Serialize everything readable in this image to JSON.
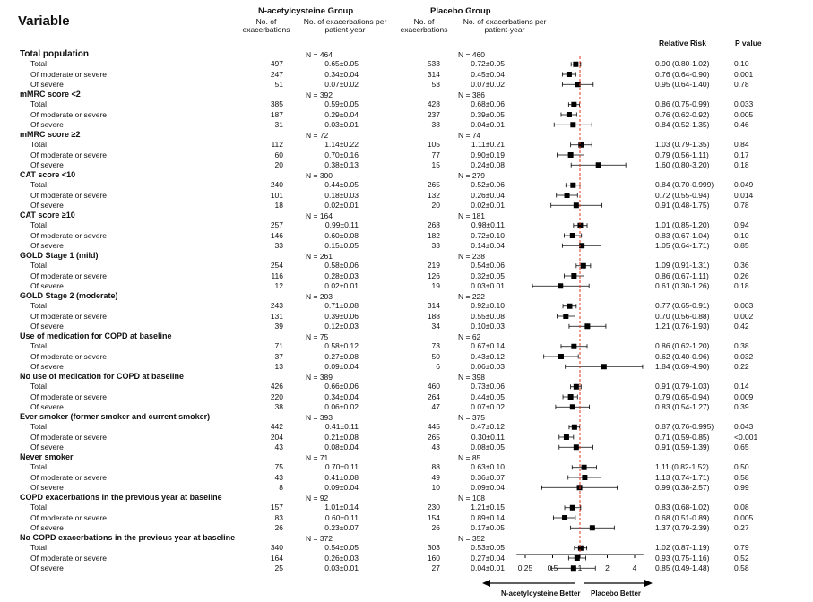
{
  "header": {
    "variable": "Variable",
    "nac_group": "N-acetylcysteine Group",
    "placebo_group": "Placebo Group",
    "col_n": "No. of exacerbations",
    "col_rate": "No. of exacerbations per patient-year",
    "col_rr": "Relative Risk",
    "col_p": "P value"
  },
  "axis": {
    "ticks": [
      "0.25",
      "0.5",
      "1",
      "2",
      "4"
    ],
    "tick_values": [
      0.25,
      0.5,
      1,
      2,
      4
    ],
    "xlim": [
      0.2,
      5
    ],
    "scale": "log",
    "reference_line": 1,
    "reference_color": "#e0351f",
    "left_label": "N-acetylcysteine Better",
    "right_label": "Placebo Better"
  },
  "chart_data": {
    "type": "forest",
    "groups": [
      {
        "title": "Total population",
        "nac_n": "N = 464",
        "placebo_n": "N = 460",
        "rows": [
          {
            "label": "Total",
            "nac_count": "497",
            "nac_rate": "0.65±0.05",
            "plc_count": "533",
            "plc_rate": "0.72±0.05",
            "rr_text": "0.90 (0.80-1.02)",
            "p": "0.10",
            "rr": 0.9,
            "lo": 0.8,
            "hi": 1.02
          },
          {
            "label": "Of moderate or severe",
            "nac_count": "247",
            "nac_rate": "0.34±0.04",
            "plc_count": "314",
            "plc_rate": "0.45±0.04",
            "rr_text": "0.76 (0.64-0.90)",
            "p": "0.001",
            "rr": 0.76,
            "lo": 0.64,
            "hi": 0.9
          },
          {
            "label": "Of severe",
            "nac_count": "51",
            "nac_rate": "0.07±0.02",
            "plc_count": "53",
            "plc_rate": "0.07±0.02",
            "rr_text": "0.95 (0.64-1.40)",
            "p": "0.78",
            "rr": 0.95,
            "lo": 0.64,
            "hi": 1.4
          }
        ]
      },
      {
        "title": "mMRC score <2",
        "nac_n": "N = 392",
        "placebo_n": "N = 386",
        "rows": [
          {
            "label": "Total",
            "nac_count": "385",
            "nac_rate": "0.59±0.05",
            "plc_count": "428",
            "plc_rate": "0.68±0.06",
            "rr_text": "0.86 (0.75-0.99)",
            "p": "0.033",
            "rr": 0.86,
            "lo": 0.75,
            "hi": 0.99
          },
          {
            "label": "Of moderate or severe",
            "nac_count": "187",
            "nac_rate": "0.29±0.04",
            "plc_count": "237",
            "plc_rate": "0.39±0.05",
            "rr_text": "0.76 (0.62-0.92)",
            "p": "0.005",
            "rr": 0.76,
            "lo": 0.62,
            "hi": 0.92
          },
          {
            "label": "Of severe",
            "nac_count": "31",
            "nac_rate": "0.03±0.01",
            "plc_count": "38",
            "plc_rate": "0.04±0.01",
            "rr_text": "0.84 (0.52-1.35)",
            "p": "0.46",
            "rr": 0.84,
            "lo": 0.52,
            "hi": 1.35
          }
        ]
      },
      {
        "title": "mMRC score ≥2",
        "nac_n": "N = 72",
        "placebo_n": "N = 74",
        "rows": [
          {
            "label": "Total",
            "nac_count": "112",
            "nac_rate": "1.14±0.22",
            "plc_count": "105",
            "plc_rate": "1.11±0.21",
            "rr_text": "1.03 (0.79-1.35)",
            "p": "0.84",
            "rr": 1.03,
            "lo": 0.79,
            "hi": 1.35
          },
          {
            "label": "Of moderate or severe",
            "nac_count": "60",
            "nac_rate": "0.70±0.16",
            "plc_count": "77",
            "plc_rate": "0.90±0.19",
            "rr_text": "0.79 (0.56-1.11)",
            "p": "0.17",
            "rr": 0.79,
            "lo": 0.56,
            "hi": 1.11
          },
          {
            "label": "Of severe",
            "nac_count": "20",
            "nac_rate": "0.38±0.13",
            "plc_count": "15",
            "plc_rate": "0.24±0.08",
            "rr_text": "1.60 (0.80-3.20)",
            "p": "0.18",
            "rr": 1.6,
            "lo": 0.8,
            "hi": 3.2
          }
        ]
      },
      {
        "title": "CAT score <10",
        "nac_n": "N = 300",
        "placebo_n": "N = 279",
        "rows": [
          {
            "label": "Total",
            "nac_count": "240",
            "nac_rate": "0.44±0.05",
            "plc_count": "265",
            "plc_rate": "0.52±0.06",
            "rr_text": "0.84 (0.70-0.999)",
            "p": "0.049",
            "rr": 0.84,
            "lo": 0.7,
            "hi": 0.999
          },
          {
            "label": "Of moderate or severe",
            "nac_count": "101",
            "nac_rate": "0.18±0.03",
            "plc_count": "132",
            "plc_rate": "0.26±0.04",
            "rr_text": "0.72 (0.55-0.94)",
            "p": "0.014",
            "rr": 0.72,
            "lo": 0.55,
            "hi": 0.94
          },
          {
            "label": "Of severe",
            "nac_count": "18",
            "nac_rate": "0.02±0.01",
            "plc_count": "20",
            "plc_rate": "0.02±0.01",
            "rr_text": "0.91 (0.48-1.75)",
            "p": "0.78",
            "rr": 0.91,
            "lo": 0.48,
            "hi": 1.75
          }
        ]
      },
      {
        "title": "CAT score ≥10",
        "nac_n": "N = 164",
        "placebo_n": "N = 181",
        "rows": [
          {
            "label": "Total",
            "nac_count": "257",
            "nac_rate": "0.99±0.11",
            "plc_count": "268",
            "plc_rate": "0.98±0.11",
            "rr_text": "1.01 (0.85-1.20)",
            "p": "0.94",
            "rr": 1.01,
            "lo": 0.85,
            "hi": 1.2
          },
          {
            "label": "Of moderate or severe",
            "nac_count": "146",
            "nac_rate": "0.60±0.08",
            "plc_count": "182",
            "plc_rate": "0.72±0.10",
            "rr_text": "0.83 (0.67-1.04)",
            "p": "0.10",
            "rr": 0.83,
            "lo": 0.67,
            "hi": 1.04
          },
          {
            "label": "Of severe",
            "nac_count": "33",
            "nac_rate": "0.15±0.05",
            "plc_count": "33",
            "plc_rate": "0.14±0.04",
            "rr_text": "1.05 (0.64-1.71)",
            "p": "0.85",
            "rr": 1.05,
            "lo": 0.64,
            "hi": 1.71
          }
        ]
      },
      {
        "title": "GOLD Stage 1 (mild)",
        "nac_n": "N = 261",
        "placebo_n": "N = 238",
        "rows": [
          {
            "label": "Total",
            "nac_count": "254",
            "nac_rate": "0.58±0.06",
            "plc_count": "219",
            "plc_rate": "0.54±0.06",
            "rr_text": "1.09 (0.91-1.31)",
            "p": "0.36",
            "rr": 1.09,
            "lo": 0.91,
            "hi": 1.31
          },
          {
            "label": "Of moderate or severe",
            "nac_count": "116",
            "nac_rate": "0.28±0.03",
            "plc_count": "126",
            "plc_rate": "0.32±0.05",
            "rr_text": "0.86 (0.67-1.11)",
            "p": "0.26",
            "rr": 0.86,
            "lo": 0.67,
            "hi": 1.11
          },
          {
            "label": "Of severe",
            "nac_count": "12",
            "nac_rate": "0.02±0.01",
            "plc_count": "19",
            "plc_rate": "0.03±0.01",
            "rr_text": "0.61 (0.30-1.26)",
            "p": "0.18",
            "rr": 0.61,
            "lo": 0.3,
            "hi": 1.26
          }
        ]
      },
      {
        "title": "GOLD Stage 2 (moderate)",
        "nac_n": "N = 203",
        "placebo_n": "N = 222",
        "rows": [
          {
            "label": "Total",
            "nac_count": "243",
            "nac_rate": "0.71±0.08",
            "plc_count": "314",
            "plc_rate": "0.92±0.10",
            "rr_text": "0.77 (0.65-0.91)",
            "p": "0.003",
            "rr": 0.77,
            "lo": 0.65,
            "hi": 0.91
          },
          {
            "label": "Of moderate or severe",
            "nac_count": "131",
            "nac_rate": "0.39±0.06",
            "plc_count": "188",
            "plc_rate": "0.55±0.08",
            "rr_text": "0.70 (0.56-0.88)",
            "p": "0.002",
            "rr": 0.7,
            "lo": 0.56,
            "hi": 0.88
          },
          {
            "label": "Of severe",
            "nac_count": "39",
            "nac_rate": "0.12±0.03",
            "plc_count": "34",
            "plc_rate": "0.10±0.03",
            "rr_text": "1.21 (0.76-1.93)",
            "p": "0.42",
            "rr": 1.21,
            "lo": 0.76,
            "hi": 1.93
          }
        ]
      },
      {
        "title": "Use of medication for COPD at baseline",
        "nac_n": "N = 75",
        "placebo_n": "N = 62",
        "rows": [
          {
            "label": "Total",
            "nac_count": "71",
            "nac_rate": "0.58±0.12",
            "plc_count": "73",
            "plc_rate": "0.67±0.14",
            "rr_text": "0.86 (0.62-1.20)",
            "p": "0.38",
            "rr": 0.86,
            "lo": 0.62,
            "hi": 1.2
          },
          {
            "label": "Of moderate or severe",
            "nac_count": "37",
            "nac_rate": "0.27±0.08",
            "plc_count": "50",
            "plc_rate": "0.43±0.12",
            "rr_text": "0.62 (0.40-0.96)",
            "p": "0.032",
            "rr": 0.62,
            "lo": 0.4,
            "hi": 0.96
          },
          {
            "label": "Of severe",
            "nac_count": "13",
            "nac_rate": "0.09±0.04",
            "plc_count": "6",
            "plc_rate": "0.06±0.03",
            "rr_text": "1.84 (0.69-4.90)",
            "p": "0.22",
            "rr": 1.84,
            "lo": 0.69,
            "hi": 4.9
          }
        ]
      },
      {
        "title": "No use of medication for COPD at baseline",
        "nac_n": "N = 389",
        "placebo_n": "N = 398",
        "rows": [
          {
            "label": "Total",
            "nac_count": "426",
            "nac_rate": "0.66±0.06",
            "plc_count": "460",
            "plc_rate": "0.73±0.06",
            "rr_text": "0.91 (0.79-1.03)",
            "p": "0.14",
            "rr": 0.91,
            "lo": 0.79,
            "hi": 1.03
          },
          {
            "label": "Of moderate or severe",
            "nac_count": "220",
            "nac_rate": "0.34±0.04",
            "plc_count": "264",
            "plc_rate": "0.44±0.05",
            "rr_text": "0.79 (0.65-0.94)",
            "p": "0.009",
            "rr": 0.79,
            "lo": 0.65,
            "hi": 0.94
          },
          {
            "label": "Of severe",
            "nac_count": "38",
            "nac_rate": "0.06±0.02",
            "plc_count": "47",
            "plc_rate": "0.07±0.02",
            "rr_text": "0.83 (0.54-1.27)",
            "p": "0.39",
            "rr": 0.83,
            "lo": 0.54,
            "hi": 1.27
          }
        ]
      },
      {
        "title": "Ever smoker (former smoker and current smoker)",
        "nac_n": "N = 393",
        "placebo_n": "N = 375",
        "rows": [
          {
            "label": "Total",
            "nac_count": "442",
            "nac_rate": "0.41±0.11",
            "plc_count": "445",
            "plc_rate": "0.47±0.12",
            "rr_text": "0.87 (0.76-0.995)",
            "p": "0.043",
            "rr": 0.87,
            "lo": 0.76,
            "hi": 0.995
          },
          {
            "label": "Of moderate or severe",
            "nac_count": "204",
            "nac_rate": "0.21±0.08",
            "plc_count": "265",
            "plc_rate": "0.30±0.11",
            "rr_text": "0.71 (0.59-0.85)",
            "p": "<0.001",
            "rr": 0.71,
            "lo": 0.59,
            "hi": 0.85
          },
          {
            "label": "Of severe",
            "nac_count": "43",
            "nac_rate": "0.08±0.04",
            "plc_count": "43",
            "plc_rate": "0.08±0.05",
            "rr_text": "0.91 (0.59-1.39)",
            "p": "0.65",
            "rr": 0.91,
            "lo": 0.59,
            "hi": 1.39
          }
        ]
      },
      {
        "title": "Never smoker",
        "nac_n": "N = 71",
        "placebo_n": "N = 85",
        "rows": [
          {
            "label": "Total",
            "nac_count": "75",
            "nac_rate": "0.70±0.11",
            "plc_count": "88",
            "plc_rate": "0.63±0.10",
            "rr_text": "1.11 (0.82-1.52)",
            "p": "0.50",
            "rr": 1.11,
            "lo": 0.82,
            "hi": 1.52
          },
          {
            "label": "Of moderate or severe",
            "nac_count": "43",
            "nac_rate": "0.41±0.08",
            "plc_count": "49",
            "plc_rate": "0.36±0.07",
            "rr_text": "1.13 (0.74-1.71)",
            "p": "0.58",
            "rr": 1.13,
            "lo": 0.74,
            "hi": 1.71
          },
          {
            "label": "Of severe",
            "nac_count": "8",
            "nac_rate": "0.09±0.04",
            "plc_count": "10",
            "plc_rate": "0.09±0.04",
            "rr_text": "0.99 (0.38-2.57)",
            "p": "0.99",
            "rr": 0.99,
            "lo": 0.38,
            "hi": 2.57
          }
        ]
      },
      {
        "title": "COPD exacerbations in the previous year at baseline",
        "nac_n": "N = 92",
        "placebo_n": "N = 108",
        "rows": [
          {
            "label": "Total",
            "nac_count": "157",
            "nac_rate": "1.01±0.14",
            "plc_count": "230",
            "plc_rate": "1.21±0.15",
            "rr_text": "0.83 (0.68-1.02)",
            "p": "0.08",
            "rr": 0.83,
            "lo": 0.68,
            "hi": 1.02
          },
          {
            "label": "Of moderate or severe",
            "nac_count": "83",
            "nac_rate": "0.60±0.11",
            "plc_count": "154",
            "plc_rate": "0.89±0.14",
            "rr_text": "0.68 (0.51-0.89)",
            "p": "0.005",
            "rr": 0.68,
            "lo": 0.51,
            "hi": 0.89
          },
          {
            "label": "Of severe",
            "nac_count": "26",
            "nac_rate": "0.23±0.07",
            "plc_count": "26",
            "plc_rate": "0.17±0.05",
            "rr_text": "1.37 (0.79-2.39)",
            "p": "0.27",
            "rr": 1.37,
            "lo": 0.79,
            "hi": 2.39
          }
        ]
      },
      {
        "title": "No COPD exacerbations in the previous year at baseline",
        "nac_n": "N = 372",
        "placebo_n": "N = 352",
        "rows": [
          {
            "label": "Total",
            "nac_count": "340",
            "nac_rate": "0.54±0.05",
            "plc_count": "303",
            "plc_rate": "0.53±0.05",
            "rr_text": "1.02 (0.87-1.19)",
            "p": "0.79",
            "rr": 1.02,
            "lo": 0.87,
            "hi": 1.19
          },
          {
            "label": "Of moderate or severe",
            "nac_count": "164",
            "nac_rate": "0.26±0.03",
            "plc_count": "160",
            "plc_rate": "0.27±0.04",
            "rr_text": "0.93 (0.75-1.16)",
            "p": "0.52",
            "rr": 0.93,
            "lo": 0.75,
            "hi": 1.16
          },
          {
            "label": "Of severe",
            "nac_count": "25",
            "nac_rate": "0.03±0.01",
            "plc_count": "27",
            "plc_rate": "0.04±0.01",
            "rr_text": "0.85 (0.49-1.48)",
            "p": "0.58",
            "rr": 0.85,
            "lo": 0.49,
            "hi": 1.48
          }
        ]
      }
    ]
  }
}
